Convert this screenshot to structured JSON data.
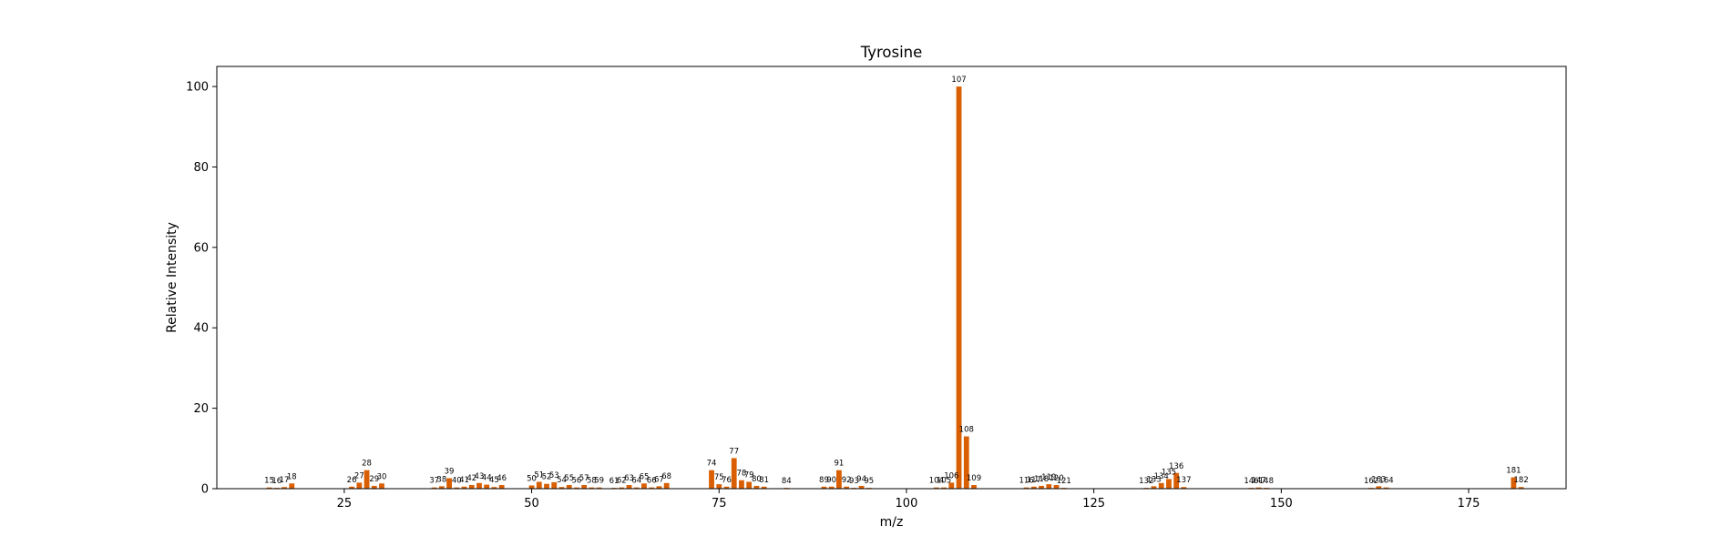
{
  "chart_data": {
    "type": "bar",
    "title": "Tyrosine",
    "xlabel": "m/z",
    "ylabel": "Relative Intensity",
    "xlim": [
      8,
      188
    ],
    "ylim": [
      0,
      105
    ],
    "xticks": [
      25,
      50,
      75,
      100,
      125,
      150,
      175
    ],
    "yticks": [
      0,
      20,
      40,
      60,
      80,
      100
    ],
    "bar_color": "#d95f02",
    "grid": false,
    "legend": "none",
    "peaks": [
      {
        "mz": 15,
        "intensity": 0.3
      },
      {
        "mz": 16,
        "intensity": 0.2
      },
      {
        "mz": 17,
        "intensity": 0.4
      },
      {
        "mz": 18,
        "intensity": 1.3
      },
      {
        "mz": 26,
        "intensity": 0.5
      },
      {
        "mz": 27,
        "intensity": 1.5
      },
      {
        "mz": 28,
        "intensity": 4.6
      },
      {
        "mz": 29,
        "intensity": 0.7
      },
      {
        "mz": 30,
        "intensity": 1.3
      },
      {
        "mz": 37,
        "intensity": 0.3
      },
      {
        "mz": 38,
        "intensity": 0.6
      },
      {
        "mz": 39,
        "intensity": 2.6
      },
      {
        "mz": 40,
        "intensity": 0.3
      },
      {
        "mz": 41,
        "intensity": 0.5
      },
      {
        "mz": 42,
        "intensity": 0.9
      },
      {
        "mz": 43,
        "intensity": 1.4
      },
      {
        "mz": 44,
        "intensity": 1.0
      },
      {
        "mz": 45,
        "intensity": 0.4
      },
      {
        "mz": 46,
        "intensity": 0.9
      },
      {
        "mz": 50,
        "intensity": 0.8
      },
      {
        "mz": 51,
        "intensity": 1.7
      },
      {
        "mz": 52,
        "intensity": 1.2
      },
      {
        "mz": 53,
        "intensity": 1.6
      },
      {
        "mz": 54,
        "intensity": 0.4
      },
      {
        "mz": 55,
        "intensity": 0.9
      },
      {
        "mz": 56,
        "intensity": 0.3
      },
      {
        "mz": 57,
        "intensity": 0.9
      },
      {
        "mz": 58,
        "intensity": 0.3
      },
      {
        "mz": 59,
        "intensity": 0.3
      },
      {
        "mz": 61,
        "intensity": 0.2
      },
      {
        "mz": 62,
        "intensity": 0.3
      },
      {
        "mz": 63,
        "intensity": 0.9
      },
      {
        "mz": 64,
        "intensity": 0.3
      },
      {
        "mz": 65,
        "intensity": 1.3
      },
      {
        "mz": 66,
        "intensity": 0.3
      },
      {
        "mz": 67,
        "intensity": 0.6
      },
      {
        "mz": 68,
        "intensity": 1.4
      },
      {
        "mz": 74,
        "intensity": 4.6
      },
      {
        "mz": 75,
        "intensity": 1.1
      },
      {
        "mz": 76,
        "intensity": 0.5
      },
      {
        "mz": 77,
        "intensity": 7.6
      },
      {
        "mz": 78,
        "intensity": 2.1
      },
      {
        "mz": 79,
        "intensity": 1.7
      },
      {
        "mz": 80,
        "intensity": 0.7
      },
      {
        "mz": 81,
        "intensity": 0.5
      },
      {
        "mz": 84,
        "intensity": 0.2
      },
      {
        "mz": 89,
        "intensity": 0.5
      },
      {
        "mz": 90,
        "intensity": 0.5
      },
      {
        "mz": 91,
        "intensity": 4.6
      },
      {
        "mz": 92,
        "intensity": 0.5
      },
      {
        "mz": 93,
        "intensity": 0.2
      },
      {
        "mz": 94,
        "intensity": 0.7
      },
      {
        "mz": 95,
        "intensity": 0.2
      },
      {
        "mz": 104,
        "intensity": 0.3
      },
      {
        "mz": 105,
        "intensity": 0.3
      },
      {
        "mz": 106,
        "intensity": 1.5
      },
      {
        "mz": 107,
        "intensity": 100
      },
      {
        "mz": 108,
        "intensity": 13
      },
      {
        "mz": 109,
        "intensity": 0.9
      },
      {
        "mz": 116,
        "intensity": 0.3
      },
      {
        "mz": 117,
        "intensity": 0.5
      },
      {
        "mz": 118,
        "intensity": 0.7
      },
      {
        "mz": 119,
        "intensity": 1.1
      },
      {
        "mz": 120,
        "intensity": 0.9
      },
      {
        "mz": 121,
        "intensity": 0.2
      },
      {
        "mz": 132,
        "intensity": 0.2
      },
      {
        "mz": 133,
        "intensity": 0.6
      },
      {
        "mz": 134,
        "intensity": 1.4
      },
      {
        "mz": 135,
        "intensity": 2.4
      },
      {
        "mz": 136,
        "intensity": 3.9
      },
      {
        "mz": 137,
        "intensity": 0.4
      },
      {
        "mz": 146,
        "intensity": 0.2
      },
      {
        "mz": 147,
        "intensity": 0.3
      },
      {
        "mz": 148,
        "intensity": 0.2
      },
      {
        "mz": 162,
        "intensity": 0.2
      },
      {
        "mz": 163,
        "intensity": 0.6
      },
      {
        "mz": 164,
        "intensity": 0.3
      },
      {
        "mz": 181,
        "intensity": 2.8
      },
      {
        "mz": 182,
        "intensity": 0.4
      }
    ]
  }
}
